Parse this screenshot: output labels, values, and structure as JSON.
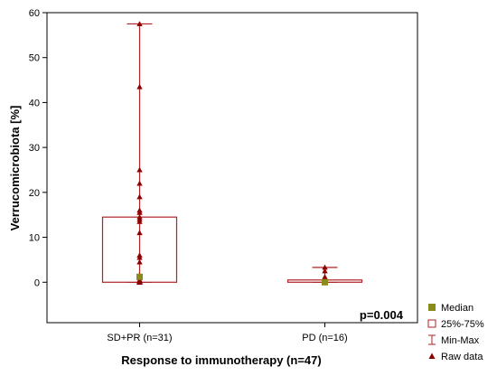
{
  "chart_data": {
    "type": "box",
    "xlabel": "Response to immunotherapy (n=47)",
    "ylabel": "Verrucomicrobiota [%]",
    "ylim": [
      -9,
      60
    ],
    "yticks": [
      0,
      10,
      20,
      30,
      40,
      50,
      60
    ],
    "categories": [
      "SD+PR (n=31)",
      "PD (n=16)"
    ],
    "boxes": [
      {
        "category": "SD+PR (n=31)",
        "median": 1.2,
        "q1": 0,
        "q3": 14.5,
        "min": 0,
        "max": 57.5,
        "raw": [
          57.5,
          43.5,
          25,
          22,
          19,
          16,
          15.5,
          14.5,
          14,
          13.5,
          11,
          6,
          5.5,
          4.5,
          1.5,
          1,
          0.5,
          0.3,
          0.2,
          0.1,
          0,
          0,
          0,
          0,
          0,
          0,
          0,
          0,
          0,
          0,
          0
        ]
      },
      {
        "category": "PD (n=16)",
        "median": 0,
        "q1": 0,
        "q3": 0.5,
        "min": 0,
        "max": 3.3,
        "raw": [
          3.3,
          2.5,
          1.2,
          0.5,
          0.3,
          0.1,
          0,
          0,
          0,
          0,
          0,
          0,
          0,
          0,
          0,
          0
        ]
      }
    ],
    "annotation": "p=0.004",
    "legend": {
      "position": "right",
      "items": [
        {
          "name": "Median",
          "symbol": "filled-square",
          "color": "#8b8b1a"
        },
        {
          "name": "25%-75%",
          "symbol": "open-square",
          "color": "#b22222"
        },
        {
          "name": "Min-Max",
          "symbol": "whisker",
          "color": "#b22222"
        },
        {
          "name": "Raw data",
          "symbol": "triangle",
          "color": "#8b0000"
        }
      ]
    },
    "colors": {
      "box": "#b22222",
      "median": "#8b8b1a",
      "raw": "#8b0000"
    }
  }
}
